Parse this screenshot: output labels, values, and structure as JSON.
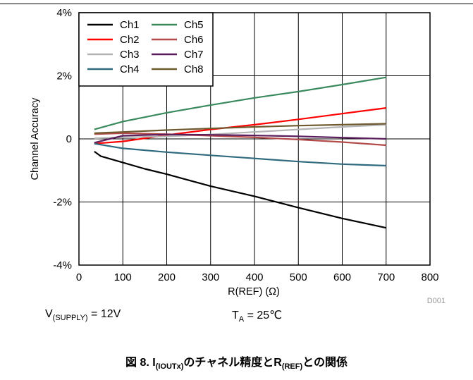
{
  "chart_data": {
    "type": "line",
    "xlabel": "R(REF) (Ω)",
    "ylabel": "Channel Accuracy",
    "xlim": [
      0,
      800
    ],
    "ylim": [
      -4,
      4
    ],
    "x_ticks": [
      "0",
      "100",
      "200",
      "300",
      "400",
      "500",
      "600",
      "700",
      "800"
    ],
    "y_ticks": [
      "-4%",
      "-2%",
      "0",
      "2%",
      "4%"
    ],
    "grid": true,
    "legend_position": "top-left",
    "figure_id": "D001",
    "series": [
      {
        "name": "Ch1",
        "color": "#000000",
        "x": [
          35,
          50,
          100,
          150,
          200,
          300,
          400,
          500,
          600,
          700
        ],
        "y": [
          -0.4,
          -0.55,
          -0.75,
          -0.95,
          -1.12,
          -1.5,
          -1.82,
          -2.18,
          -2.52,
          -2.82
        ]
      },
      {
        "name": "Ch2",
        "color": "#ff0000",
        "x": [
          35,
          100,
          200,
          300,
          400,
          500,
          600,
          700
        ],
        "y": [
          -0.15,
          -0.08,
          0.12,
          0.3,
          0.45,
          0.62,
          0.8,
          0.98
        ]
      },
      {
        "name": "Ch3",
        "color": "#b3b3b3",
        "x": [
          35,
          100,
          200,
          300,
          400,
          500,
          600,
          700
        ],
        "y": [
          0.02,
          0.05,
          0.08,
          0.14,
          0.22,
          0.3,
          0.38,
          0.45
        ]
      },
      {
        "name": "Ch4",
        "color": "#2f6a7e",
        "x": [
          35,
          100,
          200,
          300,
          400,
          500,
          600,
          700
        ],
        "y": [
          -0.15,
          -0.3,
          -0.42,
          -0.52,
          -0.62,
          -0.72,
          -0.8,
          -0.85
        ]
      },
      {
        "name": "Ch5",
        "color": "#3a8a5e",
        "x": [
          35,
          100,
          200,
          300,
          400,
          500,
          600,
          700
        ],
        "y": [
          0.3,
          0.55,
          0.83,
          1.07,
          1.3,
          1.5,
          1.72,
          1.95
        ]
      },
      {
        "name": "Ch6",
        "color": "#b34a4a",
        "x": [
          35,
          100,
          200,
          300,
          400,
          500,
          600,
          700
        ],
        "y": [
          0.15,
          0.18,
          0.15,
          0.1,
          0.05,
          -0.02,
          -0.1,
          -0.2
        ]
      },
      {
        "name": "Ch7",
        "color": "#5c1f5e",
        "x": [
          35,
          100,
          200,
          300,
          400,
          500,
          600,
          700
        ],
        "y": [
          -0.12,
          0.1,
          0.14,
          0.13,
          0.11,
          0.08,
          0.04,
          0.0
        ]
      },
      {
        "name": "Ch8",
        "color": "#6e5a2e",
        "x": [
          35,
          100,
          200,
          300,
          400,
          500,
          600,
          700
        ],
        "y": [
          0.18,
          0.22,
          0.28,
          0.33,
          0.38,
          0.42,
          0.45,
          0.48
        ]
      }
    ]
  },
  "conditions": {
    "supply_main": "V",
    "supply_sub": "(SUPPLY)",
    "supply_rest": " = 12V",
    "temp_main": "T",
    "temp_sub": "A",
    "temp_rest": " = 25℃"
  },
  "caption": {
    "prefix": "図 8. I",
    "sub1": "(IOUTx)",
    "middle": "のチャネル精度とR",
    "sub2": "(REF)",
    "suffix": "との関係"
  }
}
